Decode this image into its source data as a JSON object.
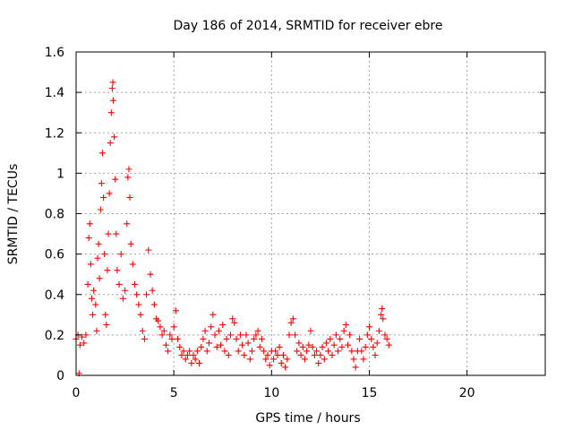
{
  "chart_data": {
    "type": "scatter",
    "title": "Day 186 of 2014, SRMTID for receiver ebre",
    "xlabel": "GPS time / hours",
    "ylabel": "SRMTID / TECUs",
    "xlim": [
      0,
      24
    ],
    "ylim": [
      0,
      1.6
    ],
    "xticks": [
      0,
      5,
      10,
      15,
      20
    ],
    "xtick_labels": [
      "0",
      "5",
      "10",
      "15",
      "20"
    ],
    "yticks": [
      0,
      0.2,
      0.4,
      0.6,
      0.8,
      1.0,
      1.2,
      1.4,
      1.6
    ],
    "ytick_labels": [
      "0",
      "0.2",
      "0.4",
      "0.6",
      "0.8",
      "1",
      "1.2",
      "1.4",
      "1.6"
    ],
    "grid": true,
    "marker": "+",
    "color": "#ff0000",
    "series": [
      {
        "name": "SRMTID",
        "points": [
          [
            0.0,
            0.18
          ],
          [
            0.1,
            0.2
          ],
          [
            0.15,
            0.01
          ],
          [
            0.2,
            0.15
          ],
          [
            0.3,
            0.19
          ],
          [
            0.4,
            0.16
          ],
          [
            0.5,
            0.2
          ],
          [
            0.6,
            0.45
          ],
          [
            0.65,
            0.68
          ],
          [
            0.7,
            0.75
          ],
          [
            0.75,
            0.55
          ],
          [
            0.8,
            0.38
          ],
          [
            0.85,
            0.3
          ],
          [
            0.9,
            0.42
          ],
          [
            1.0,
            0.35
          ],
          [
            1.05,
            0.22
          ],
          [
            1.1,
            0.58
          ],
          [
            1.15,
            0.65
          ],
          [
            1.2,
            0.48
          ],
          [
            1.25,
            0.82
          ],
          [
            1.3,
            0.95
          ],
          [
            1.35,
            1.1
          ],
          [
            1.4,
            0.88
          ],
          [
            1.45,
            0.6
          ],
          [
            1.5,
            0.3
          ],
          [
            1.55,
            0.25
          ],
          [
            1.6,
            0.52
          ],
          [
            1.65,
            0.7
          ],
          [
            1.7,
            0.9
          ],
          [
            1.75,
            1.15
          ],
          [
            1.8,
            1.3
          ],
          [
            1.85,
            1.42
          ],
          [
            1.88,
            1.45
          ],
          [
            1.9,
            1.36
          ],
          [
            1.95,
            1.18
          ],
          [
            2.0,
            0.97
          ],
          [
            2.05,
            0.7
          ],
          [
            2.1,
            0.52
          ],
          [
            2.2,
            0.45
          ],
          [
            2.3,
            0.6
          ],
          [
            2.4,
            0.38
          ],
          [
            2.5,
            0.42
          ],
          [
            2.6,
            0.75
          ],
          [
            2.65,
            0.98
          ],
          [
            2.7,
            1.02
          ],
          [
            2.75,
            0.88
          ],
          [
            2.8,
            0.65
          ],
          [
            2.9,
            0.55
          ],
          [
            3.0,
            0.45
          ],
          [
            3.1,
            0.4
          ],
          [
            3.2,
            0.35
          ],
          [
            3.3,
            0.3
          ],
          [
            3.4,
            0.22
          ],
          [
            3.5,
            0.18
          ],
          [
            3.6,
            0.4
          ],
          [
            3.7,
            0.62
          ],
          [
            3.8,
            0.5
          ],
          [
            3.9,
            0.42
          ],
          [
            4.0,
            0.35
          ],
          [
            4.1,
            0.28
          ],
          [
            4.2,
            0.27
          ],
          [
            4.3,
            0.24
          ],
          [
            4.4,
            0.2
          ],
          [
            4.5,
            0.22
          ],
          [
            4.6,
            0.15
          ],
          [
            4.7,
            0.12
          ],
          [
            4.8,
            0.2
          ],
          [
            4.9,
            0.18
          ],
          [
            5.0,
            0.24
          ],
          [
            5.1,
            0.32
          ],
          [
            5.2,
            0.18
          ],
          [
            5.3,
            0.14
          ],
          [
            5.4,
            0.1
          ],
          [
            5.5,
            0.12
          ],
          [
            5.6,
            0.08
          ],
          [
            5.7,
            0.1
          ],
          [
            5.8,
            0.12
          ],
          [
            5.9,
            0.06
          ],
          [
            6.0,
            0.1
          ],
          [
            6.1,
            0.08
          ],
          [
            6.2,
            0.12
          ],
          [
            6.3,
            0.06
          ],
          [
            6.4,
            0.14
          ],
          [
            6.5,
            0.18
          ],
          [
            6.6,
            0.22
          ],
          [
            6.7,
            0.12
          ],
          [
            6.8,
            0.16
          ],
          [
            6.9,
            0.24
          ],
          [
            7.0,
            0.3
          ],
          [
            7.1,
            0.2
          ],
          [
            7.2,
            0.14
          ],
          [
            7.3,
            0.22
          ],
          [
            7.4,
            0.15
          ],
          [
            7.5,
            0.25
          ],
          [
            7.6,
            0.12
          ],
          [
            7.7,
            0.18
          ],
          [
            7.8,
            0.1
          ],
          [
            7.9,
            0.2
          ],
          [
            8.0,
            0.28
          ],
          [
            8.1,
            0.26
          ],
          [
            8.2,
            0.18
          ],
          [
            8.3,
            0.12
          ],
          [
            8.4,
            0.2
          ],
          [
            8.5,
            0.15
          ],
          [
            8.6,
            0.1
          ],
          [
            8.7,
            0.2
          ],
          [
            8.8,
            0.16
          ],
          [
            8.9,
            0.08
          ],
          [
            9.0,
            0.12
          ],
          [
            9.1,
            0.18
          ],
          [
            9.2,
            0.2
          ],
          [
            9.3,
            0.22
          ],
          [
            9.4,
            0.14
          ],
          [
            9.5,
            0.18
          ],
          [
            9.6,
            0.12
          ],
          [
            9.7,
            0.08
          ],
          [
            9.8,
            0.1
          ],
          [
            9.9,
            0.05
          ],
          [
            10.0,
            0.12
          ],
          [
            10.1,
            0.08
          ],
          [
            10.2,
            0.12
          ],
          [
            10.3,
            0.1
          ],
          [
            10.4,
            0.14
          ],
          [
            10.5,
            0.06
          ],
          [
            10.6,
            0.1
          ],
          [
            10.7,
            0.04
          ],
          [
            10.8,
            0.08
          ],
          [
            10.9,
            0.2
          ],
          [
            11.0,
            0.26
          ],
          [
            11.1,
            0.28
          ],
          [
            11.2,
            0.2
          ],
          [
            11.3,
            0.12
          ],
          [
            11.4,
            0.16
          ],
          [
            11.5,
            0.1
          ],
          [
            11.6,
            0.14
          ],
          [
            11.7,
            0.08
          ],
          [
            11.8,
            0.12
          ],
          [
            11.9,
            0.15
          ],
          [
            12.0,
            0.22
          ],
          [
            12.1,
            0.14
          ],
          [
            12.2,
            0.1
          ],
          [
            12.3,
            0.12
          ],
          [
            12.4,
            0.06
          ],
          [
            12.5,
            0.1
          ],
          [
            12.6,
            0.14
          ],
          [
            12.7,
            0.08
          ],
          [
            12.8,
            0.16
          ],
          [
            12.9,
            0.12
          ],
          [
            13.0,
            0.18
          ],
          [
            13.1,
            0.1
          ],
          [
            13.2,
            0.15
          ],
          [
            13.3,
            0.2
          ],
          [
            13.4,
            0.12
          ],
          [
            13.5,
            0.18
          ],
          [
            13.6,
            0.14
          ],
          [
            13.7,
            0.22
          ],
          [
            13.8,
            0.25
          ],
          [
            13.9,
            0.15
          ],
          [
            14.0,
            0.2
          ],
          [
            14.1,
            0.12
          ],
          [
            14.2,
            0.08
          ],
          [
            14.3,
            0.04
          ],
          [
            14.4,
            0.12
          ],
          [
            14.5,
            0.18
          ],
          [
            14.6,
            0.12
          ],
          [
            14.7,
            0.08
          ],
          [
            14.8,
            0.14
          ],
          [
            14.9,
            0.2
          ],
          [
            15.0,
            0.24
          ],
          [
            15.1,
            0.18
          ],
          [
            15.2,
            0.14
          ],
          [
            15.3,
            0.1
          ],
          [
            15.4,
            0.16
          ],
          [
            15.5,
            0.22
          ],
          [
            15.6,
            0.3
          ],
          [
            15.65,
            0.33
          ],
          [
            15.7,
            0.28
          ],
          [
            15.8,
            0.2
          ],
          [
            15.9,
            0.18
          ],
          [
            16.0,
            0.15
          ]
        ]
      }
    ]
  }
}
